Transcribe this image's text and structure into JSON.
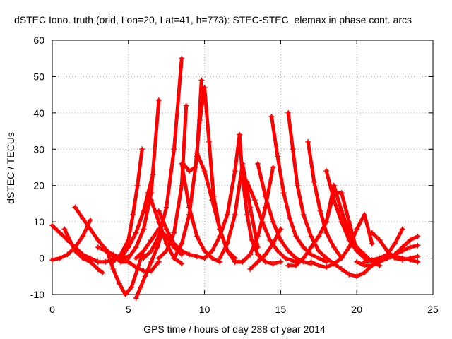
{
  "chart_data": {
    "type": "scatter",
    "title": "dSTEC Iono. truth (orid, Lon=20, Lat=41, h=773): STEC-STEC_elemax in phase cont. arcs",
    "xlabel": "GPS time / hours of day 288 of year 2014",
    "ylabel": "dSTEC  / TECUs",
    "xlim": [
      0,
      25
    ],
    "ylim": [
      -10,
      60
    ],
    "xticks": [
      0,
      5,
      10,
      15,
      20,
      25
    ],
    "yticks": [
      -10,
      0,
      10,
      20,
      30,
      40,
      50,
      60
    ],
    "grid": true,
    "marker": "+",
    "color": "#ff0000",
    "series": [
      {
        "x": [
          0.0,
          0.5,
          1.0,
          1.5,
          2.0,
          2.5,
          3.0,
          3.5,
          4.0,
          4.5,
          5.0
        ],
        "y": [
          9,
          7,
          5,
          3,
          1,
          0,
          -1,
          -1,
          -0.5,
          0,
          0.5
        ]
      },
      {
        "x": [
          0.0,
          0.5,
          1.0,
          1.5,
          2.0,
          2.5
        ],
        "y": [
          -0.5,
          0,
          1,
          3,
          6,
          10.5
        ]
      },
      {
        "x": [
          0.8,
          1.5,
          2.0,
          2.5,
          3.0,
          3.3
        ],
        "y": [
          8,
          2,
          0,
          -1,
          -3,
          -4
        ]
      },
      {
        "x": [
          1.5,
          2.0,
          2.5,
          3.0,
          3.5,
          4.0,
          4.5,
          5.0
        ],
        "y": [
          14,
          11,
          8,
          5,
          2.5,
          0.5,
          -1,
          -1
        ]
      },
      {
        "x": [
          3.0,
          3.5,
          4.0,
          4.5,
          5.0,
          5.5,
          6.0,
          6.5,
          7.0
        ],
        "y": [
          3,
          2,
          1,
          0,
          -1,
          -2.5,
          -3.5,
          -3.5,
          -1
        ]
      },
      {
        "x": [
          3.6,
          4.0,
          4.4,
          4.8,
          5.2,
          5.6,
          5.9
        ],
        "y": [
          2,
          -3,
          -7,
          -10,
          -8,
          -3,
          1
        ]
      },
      {
        "x": [
          4.0,
          4.5,
          5.0,
          5.3,
          5.6,
          5.9
        ],
        "y": [
          -1,
          1,
          5,
          12,
          20,
          30
        ]
      },
      {
        "x": [
          4.5,
          5.0,
          5.5,
          6.0,
          6.3,
          6.6
        ],
        "y": [
          0,
          3,
          7,
          13,
          18,
          23
        ]
      },
      {
        "x": [
          5.5,
          5.8,
          6.1,
          6.5,
          6.9,
          7.2
        ],
        "y": [
          -11,
          -8,
          -5,
          -1,
          3,
          7
        ]
      },
      {
        "x": [
          5.0,
          5.5,
          6.0,
          6.5,
          7.0
        ],
        "y": [
          0,
          3,
          8,
          18,
          43.5
        ]
      },
      {
        "x": [
          6.5,
          7.0,
          7.5,
          8.0,
          8.5
        ],
        "y": [
          16,
          10,
          4,
          0,
          -1.5
        ]
      },
      {
        "x": [
          6.0,
          6.5,
          7.0,
          7.5,
          8.0,
          8.5
        ],
        "y": [
          0,
          2,
          6,
          14,
          30,
          55
        ]
      },
      {
        "x": [
          7.0,
          7.5,
          8.0,
          8.5,
          8.8
        ],
        "y": [
          0,
          2,
          7,
          20,
          42
        ]
      },
      {
        "x": [
          8.5,
          9.0,
          9.5,
          10.0,
          10.5,
          11.0
        ],
        "y": [
          26,
          14,
          6,
          2,
          0,
          -1
        ]
      },
      {
        "x": [
          8.0,
          8.5,
          9.0,
          9.5,
          9.8
        ],
        "y": [
          0,
          4,
          12,
          28,
          49
        ]
      },
      {
        "x": [
          8.6,
          9.0,
          9.4,
          9.7,
          10.0,
          10.3,
          10.6,
          11.0,
          11.5,
          12.0
        ],
        "y": [
          26,
          24,
          25,
          38,
          47,
          32,
          17,
          8,
          2,
          0
        ]
      },
      {
        "x": [
          9.5,
          10.0,
          10.5,
          11.0,
          11.5,
          12.0,
          12.5
        ],
        "y": [
          29,
          24,
          16,
          8,
          2,
          -1,
          -1
        ]
      },
      {
        "x": [
          7.0,
          7.5,
          8.0,
          8.5,
          9.0,
          9.5,
          10.0
        ],
        "y": [
          13,
          8,
          4,
          2,
          1,
          0.5,
          0
        ]
      },
      {
        "x": [
          5.5,
          6.0,
          6.5,
          7.0,
          7.5,
          8.0,
          8.5
        ],
        "y": [
          0,
          2,
          5,
          8,
          6,
          3,
          1
        ]
      },
      {
        "x": [
          10.0,
          10.5,
          11.0,
          11.5,
          12.0,
          12.3
        ],
        "y": [
          0,
          2,
          6,
          12,
          24,
          34
        ]
      },
      {
        "x": [
          12.3,
          12.5,
          12.8,
          13.1,
          13.5,
          14.0,
          14.5,
          15.0
        ],
        "y": [
          34,
          22,
          12,
          5,
          1,
          -1,
          -1.5,
          -1
        ]
      },
      {
        "x": [
          11.0,
          11.5,
          12.0,
          12.5,
          13.0,
          13.5
        ],
        "y": [
          0,
          4,
          12,
          26,
          14,
          3
        ]
      },
      {
        "x": [
          12.8,
          13.3,
          13.8,
          14.3,
          14.8,
          15.3,
          16.0
        ],
        "y": [
          21,
          16,
          10,
          5,
          2,
          0,
          -1
        ]
      },
      {
        "x": [
          13.5,
          14.0,
          14.5,
          15.0,
          15.5,
          16.0,
          16.5,
          17.0
        ],
        "y": [
          26,
          17,
          10,
          5,
          2,
          0,
          -1,
          -1.5
        ]
      },
      {
        "x": [
          12.0,
          12.5,
          13.0,
          13.5,
          14.0,
          14.5
        ],
        "y": [
          -1,
          -1,
          1,
          6,
          14,
          25
        ]
      },
      {
        "x": [
          13.0,
          13.5,
          14.0,
          14.5,
          15.0
        ],
        "y": [
          -3,
          -1,
          1,
          4,
          8
        ]
      },
      {
        "x": [
          14.4,
          14.8,
          15.2,
          15.6,
          16.0,
          16.5,
          17.0,
          17.5,
          18.0
        ],
        "y": [
          39,
          28,
          18,
          11,
          6,
          3,
          1,
          0,
          -1
        ]
      },
      {
        "x": [
          15.5,
          15.8,
          16.1,
          16.5,
          17.0,
          17.5,
          18.0
        ],
        "y": [
          40,
          30,
          20,
          12,
          6,
          2,
          0
        ]
      },
      {
        "x": [
          16.8,
          17.2,
          17.6,
          18.0,
          18.5,
          19.0
        ],
        "y": [
          32,
          21,
          13,
          7,
          3,
          0
        ]
      },
      {
        "x": [
          17.0,
          17.5,
          18.0,
          18.5,
          19.0,
          19.5,
          20.0
        ],
        "y": [
          3,
          6,
          10,
          18,
          18,
          10,
          2
        ]
      },
      {
        "x": [
          18.0,
          18.5,
          19.0,
          19.5,
          20.0,
          20.5,
          21.0
        ],
        "y": [
          24,
          16,
          10,
          5,
          2,
          0,
          -1
        ]
      },
      {
        "x": [
          18.5,
          19.0,
          19.5,
          20.0,
          20.5,
          21.0,
          21.5
        ],
        "y": [
          20,
          13,
          7,
          3,
          1,
          -1,
          -2
        ]
      },
      {
        "x": [
          17.0,
          17.5,
          18.0,
          18.5,
          19.0,
          19.5,
          20.0,
          20.5,
          21.0
        ],
        "y": [
          -1,
          -2,
          -2.5,
          -1.5,
          0,
          3,
          8,
          12,
          4
        ]
      },
      {
        "x": [
          15.5,
          16.0,
          16.5,
          17.0,
          17.5,
          18.0,
          18.5
        ],
        "y": [
          -2,
          -2,
          0,
          3,
          6,
          10,
          20
        ]
      },
      {
        "x": [
          18.0,
          18.5,
          19.0,
          19.5,
          20.0,
          20.5,
          21.0,
          21.5,
          22.0
        ],
        "y": [
          0,
          -1.5,
          -3,
          -4.5,
          -5,
          -4,
          -2,
          0,
          1
        ]
      },
      {
        "x": [
          20.0,
          20.5,
          21.0,
          21.5,
          22.0,
          22.5,
          23.0
        ],
        "y": [
          -1,
          -2,
          -2,
          -1,
          1,
          4,
          8
        ]
      },
      {
        "x": [
          21.0,
          21.5,
          22.0,
          22.5,
          23.0,
          23.5,
          24.0
        ],
        "y": [
          -2,
          -1,
          0,
          1,
          3,
          5,
          6
        ]
      },
      {
        "x": [
          21.0,
          21.5,
          22.0,
          22.5,
          23.0,
          23.5,
          24.0
        ],
        "y": [
          7,
          5,
          2,
          0,
          -0.5,
          0,
          0.5
        ]
      },
      {
        "x": [
          22.0,
          22.5,
          23.0,
          23.5,
          24.0
        ],
        "y": [
          0,
          1,
          2,
          3,
          3.5
        ]
      },
      {
        "x": [
          20.5,
          21.0,
          21.5,
          22.0,
          22.5,
          23.0,
          23.5,
          24.0
        ],
        "y": [
          -1,
          -0.5,
          0,
          0,
          0.5,
          0,
          -0.5,
          -1
        ]
      }
    ]
  }
}
